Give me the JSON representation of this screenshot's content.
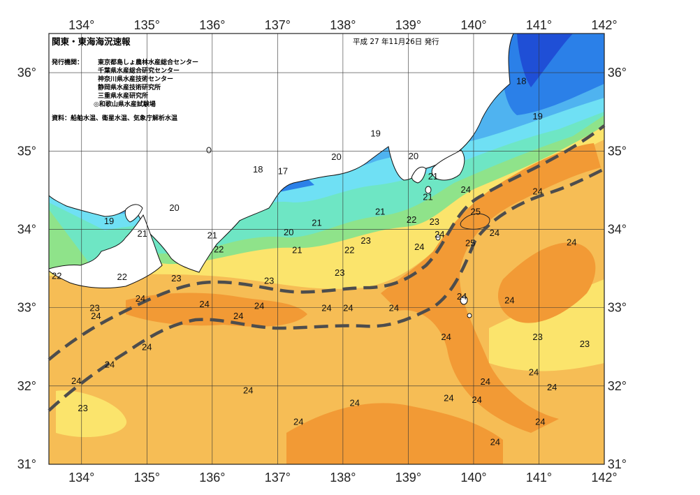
{
  "header": {
    "title": "関東・東海海況速報",
    "date": "平成 27 年11月26日 発行"
  },
  "issuers": {
    "label": "発行機関：",
    "items": [
      "東京都島しょ農林水産総合センター",
      "千葉県水産総合研究センター",
      "神奈川県水産技術センター",
      "静岡県水産技術研究所",
      "三重県水産研究所",
      "◎和歌山県水産試験場"
    ]
  },
  "source": "資料：船舶水温、衛星水温、気象庁解析水温",
  "axes": {
    "lon_labels": [
      "134°",
      "135°",
      "136°",
      "137°",
      "138°",
      "139°",
      "140°",
      "141°",
      "142°"
    ],
    "lat_labels": [
      "36°",
      "35°",
      "34°",
      "33°",
      "32°",
      "31°"
    ]
  },
  "isotherm_labels": [
    {
      "t": "17",
      "lon": 137.08,
      "lat": 34.75
    },
    {
      "t": "18",
      "lon": 136.7,
      "lat": 34.77
    },
    {
      "t": "18",
      "lon": 140.73,
      "lat": 35.9
    },
    {
      "t": "19",
      "lon": 138.5,
      "lat": 35.23
    },
    {
      "t": "19",
      "lon": 140.98,
      "lat": 35.45
    },
    {
      "t": "19",
      "lon": 134.42,
      "lat": 34.11
    },
    {
      "t": "20",
      "lon": 137.9,
      "lat": 34.93
    },
    {
      "t": "20",
      "lon": 139.08,
      "lat": 34.94
    },
    {
      "t": "20",
      "lon": 135.42,
      "lat": 34.28
    },
    {
      "t": "20",
      "lon": 137.17,
      "lat": 33.97
    },
    {
      "t": "21",
      "lon": 139.38,
      "lat": 34.68
    },
    {
      "t": "21",
      "lon": 139.3,
      "lat": 34.42
    },
    {
      "t": "21",
      "lon": 138.57,
      "lat": 34.23
    },
    {
      "t": "21",
      "lon": 137.6,
      "lat": 34.09
    },
    {
      "t": "21",
      "lon": 137.3,
      "lat": 33.74
    },
    {
      "t": "21",
      "lon": 136.0,
      "lat": 33.93
    },
    {
      "t": "21",
      "lon": 134.93,
      "lat": 33.95
    },
    {
      "t": "22",
      "lon": 139.05,
      "lat": 34.13
    },
    {
      "t": "22",
      "lon": 138.1,
      "lat": 33.74
    },
    {
      "t": "22",
      "lon": 136.1,
      "lat": 33.75
    },
    {
      "t": "22",
      "lon": 134.62,
      "lat": 33.4
    },
    {
      "t": "22",
      "lon": 133.62,
      "lat": 33.41
    },
    {
      "t": "23",
      "lon": 139.4,
      "lat": 34.1
    },
    {
      "t": "23",
      "lon": 138.35,
      "lat": 33.86
    },
    {
      "t": "23",
      "lon": 137.95,
      "lat": 33.45
    },
    {
      "t": "23",
      "lon": 136.87,
      "lat": 33.35
    },
    {
      "t": "23",
      "lon": 135.45,
      "lat": 33.38
    },
    {
      "t": "23",
      "lon": 134.2,
      "lat": 33.0
    },
    {
      "t": "23",
      "lon": 140.98,
      "lat": 32.63
    },
    {
      "t": "23",
      "lon": 141.7,
      "lat": 32.54
    },
    {
      "t": "23",
      "lon": 134.02,
      "lat": 31.72
    },
    {
      "t": "24",
      "lon": 139.88,
      "lat": 34.51
    },
    {
      "t": "24",
      "lon": 140.98,
      "lat": 34.49
    },
    {
      "t": "24",
      "lon": 139.48,
      "lat": 33.94
    },
    {
      "t": "24",
      "lon": 140.32,
      "lat": 33.96
    },
    {
      "t": "24",
      "lon": 141.5,
      "lat": 33.84
    },
    {
      "t": "24",
      "lon": 139.17,
      "lat": 33.78
    },
    {
      "t": "24",
      "lon": 139.82,
      "lat": 33.15
    },
    {
      "t": "24",
      "lon": 140.55,
      "lat": 33.1
    },
    {
      "t": "24",
      "lon": 135.88,
      "lat": 33.05
    },
    {
      "t": "24",
      "lon": 136.72,
      "lat": 33.03
    },
    {
      "t": "24",
      "lon": 137.75,
      "lat": 33.0
    },
    {
      "t": "24",
      "lon": 138.08,
      "lat": 33.0
    },
    {
      "t": "24",
      "lon": 138.78,
      "lat": 33.0
    },
    {
      "t": "24",
      "lon": 136.4,
      "lat": 32.9
    },
    {
      "t": "24",
      "lon": 134.9,
      "lat": 33.12
    },
    {
      "t": "24",
      "lon": 134.22,
      "lat": 32.9
    },
    {
      "t": "24",
      "lon": 135.0,
      "lat": 32.5
    },
    {
      "t": "24",
      "lon": 134.43,
      "lat": 32.28
    },
    {
      "t": "24",
      "lon": 133.92,
      "lat": 32.07
    },
    {
      "t": "24",
      "lon": 139.58,
      "lat": 32.63
    },
    {
      "t": "24",
      "lon": 140.18,
      "lat": 32.06
    },
    {
      "t": "24",
      "lon": 140.92,
      "lat": 32.18
    },
    {
      "t": "24",
      "lon": 141.2,
      "lat": 31.99
    },
    {
      "t": "24",
      "lon": 139.62,
      "lat": 31.85
    },
    {
      "t": "24",
      "lon": 140.05,
      "lat": 31.83
    },
    {
      "t": "24",
      "lon": 136.55,
      "lat": 31.95
    },
    {
      "t": "24",
      "lon": 138.18,
      "lat": 31.79
    },
    {
      "t": "24",
      "lon": 137.32,
      "lat": 31.55
    },
    {
      "t": "24",
      "lon": 141.02,
      "lat": 31.55
    },
    {
      "t": "24",
      "lon": 140.33,
      "lat": 31.29
    },
    {
      "t": "25",
      "lon": 140.03,
      "lat": 34.23
    },
    {
      "t": "25",
      "lon": 139.95,
      "lat": 33.83
    }
  ],
  "colors": {
    "t17": "#1f4fd6",
    "t18": "#2b80e8",
    "t19": "#4fb3f0",
    "t20": "#6fe0f4",
    "t21": "#6ee6c4",
    "t22": "#8fe38a",
    "t23": "#fbe46c",
    "t24": "#f6bd55",
    "t25": "#f29a35",
    "kuroshio": "#4d4d4d",
    "land": "#ffffff",
    "grid": "#333333"
  }
}
